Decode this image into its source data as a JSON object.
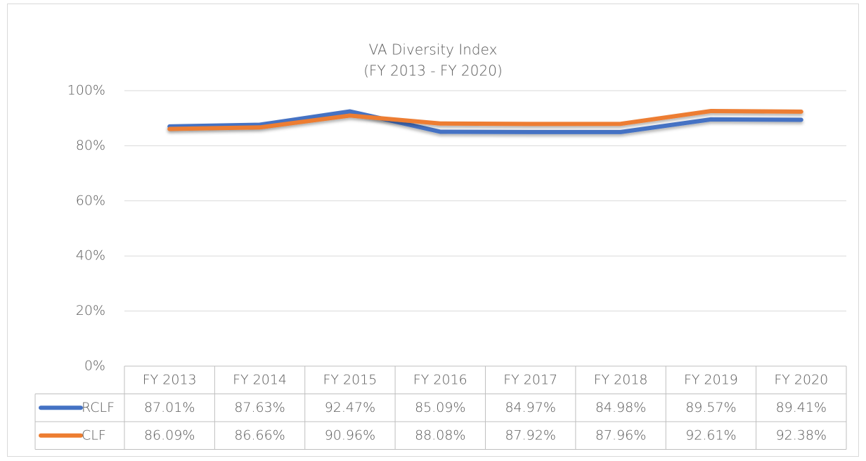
{
  "chart_data": {
    "type": "line",
    "title": "VA Diversity Index",
    "subtitle": "(FY 2013 - FY 2020)",
    "categories": [
      "FY 2013",
      "FY 2014",
      "FY 2015",
      "FY 2016",
      "FY 2017",
      "FY 2018",
      "FY 2019",
      "FY 2020"
    ],
    "series": [
      {
        "name": "RCLF",
        "color": "#4472c4",
        "values": [
          87.01,
          87.63,
          92.47,
          85.09,
          84.97,
          84.98,
          89.57,
          89.41
        ],
        "value_labels": [
          "87.01%",
          "87.63%",
          "92.47%",
          "85.09%",
          "84.97%",
          "84.98%",
          "89.57%",
          "89.41%"
        ]
      },
      {
        "name": "CLF",
        "color": "#ed7d31",
        "values": [
          86.09,
          86.66,
          90.96,
          88.08,
          87.92,
          87.96,
          92.61,
          92.38
        ],
        "value_labels": [
          "86.09%",
          "86.66%",
          "90.96%",
          "88.08%",
          "87.92%",
          "87.96%",
          "92.61%",
          "92.38%"
        ]
      }
    ],
    "ylim": [
      0,
      100
    ],
    "yticks": [
      {
        "value": 0,
        "label": "0%"
      },
      {
        "value": 20,
        "label": "20%"
      },
      {
        "value": 40,
        "label": "40%"
      },
      {
        "value": 60,
        "label": "60%"
      },
      {
        "value": 80,
        "label": "80%"
      },
      {
        "value": 100,
        "label": "100%"
      }
    ],
    "grid": true,
    "data_table": true
  }
}
